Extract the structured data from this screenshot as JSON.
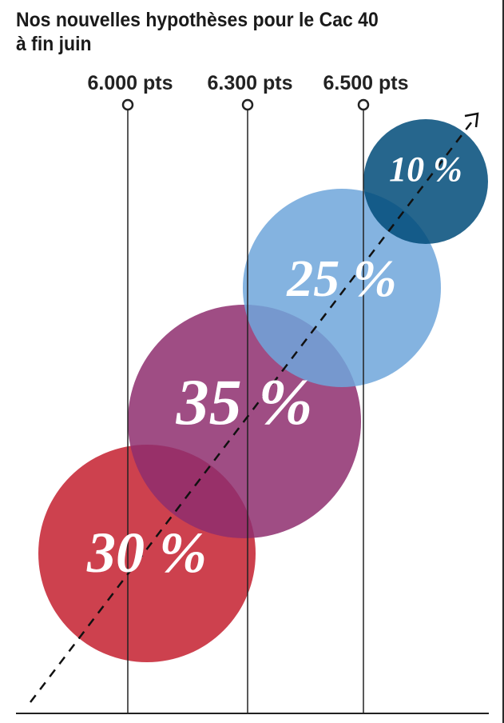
{
  "title_lines": [
    "Nos nouvelles hypothèses pour le Cac 40",
    "à fin juin"
  ],
  "chart_data": {
    "type": "bubble",
    "title": "Nos nouvelles hypothèses pour le Cac 40 à fin juin",
    "levels": [
      "6.000 pts",
      "6.300 pts",
      "6.500 pts"
    ],
    "scenarios": [
      {
        "label": "30 %",
        "value": 30,
        "color": "#C4202F"
      },
      {
        "label": "35 %",
        "value": 35,
        "color": "#8E2E6E"
      },
      {
        "label": "25 %",
        "value": 25,
        "color": "#6FA6DB"
      },
      {
        "label": "10 %",
        "value": 10,
        "color": "#004B79"
      }
    ]
  }
}
